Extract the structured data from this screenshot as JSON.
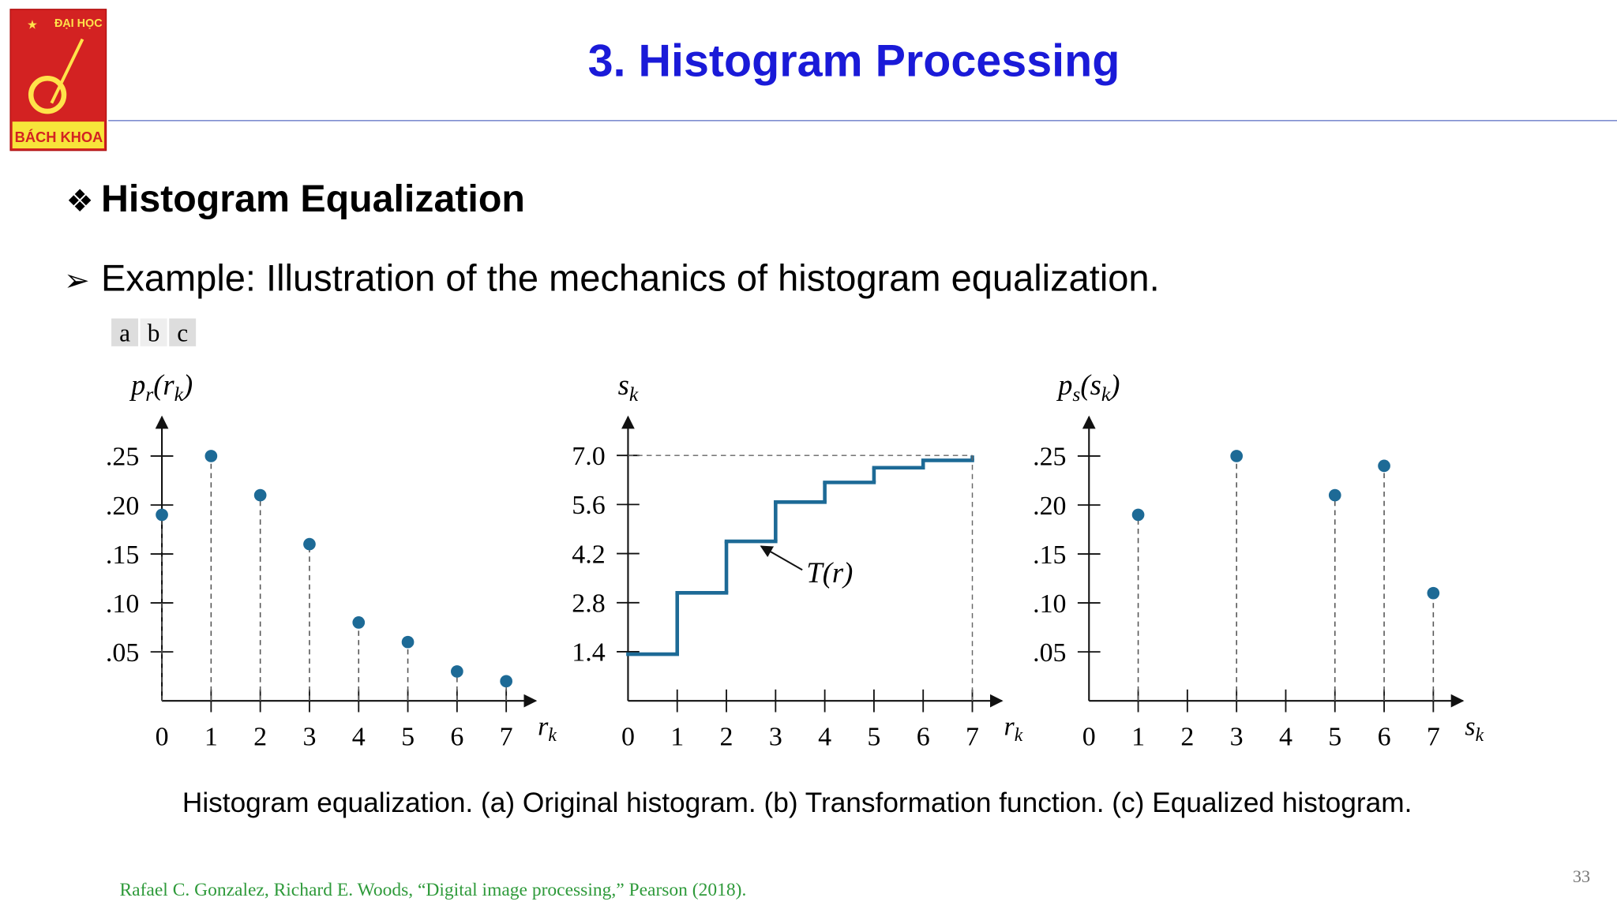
{
  "logo": {
    "top": "ĐẠI HỌC",
    "bottom": "BÁCH KHOA"
  },
  "header": {
    "title": "3. Histogram Processing"
  },
  "heading": {
    "marker": "❖",
    "text": "Histogram Equalization"
  },
  "bullet": {
    "marker": "➢",
    "text": "Example: Illustration of the mechanics of histogram equalization."
  },
  "panel_labels": [
    "a",
    "b",
    "c"
  ],
  "chart_data": [
    {
      "type": "stem",
      "ylabel": [
        {
          "text": "p"
        },
        {
          "text": "r",
          "sub": true
        },
        {
          "text": "("
        },
        {
          "text": "r"
        },
        {
          "text": "k",
          "sub": true
        },
        {
          "text": ")"
        }
      ],
      "xlabel": [
        {
          "text": "r"
        },
        {
          "text": "k",
          "sub": true
        }
      ],
      "x": [
        0,
        1,
        2,
        3,
        4,
        5,
        6,
        7
      ],
      "values": [
        0.19,
        0.25,
        0.21,
        0.16,
        0.08,
        0.06,
        0.03,
        0.02
      ],
      "color": "#1d6a96",
      "xlim": [
        0,
        7.6
      ],
      "ylim": [
        0,
        0.29
      ],
      "xticks": [
        0,
        1,
        2,
        3,
        4,
        5,
        6,
        7
      ],
      "yticks": [
        {
          "value": 0.05,
          "label": ".05"
        },
        {
          "value": 0.1,
          "label": ".10"
        },
        {
          "value": 0.15,
          "label": ".15"
        },
        {
          "value": 0.2,
          "label": ".20"
        },
        {
          "value": 0.25,
          "label": ".25"
        }
      ]
    },
    {
      "type": "step",
      "ylabel": [
        {
          "text": "s"
        },
        {
          "text": "k",
          "sub": true
        }
      ],
      "xlabel": [
        {
          "text": "r"
        },
        {
          "text": "k",
          "sub": true
        }
      ],
      "x": [
        0,
        1,
        2,
        3,
        4,
        5,
        6,
        7
      ],
      "values": [
        1.33,
        3.08,
        4.55,
        5.67,
        6.23,
        6.65,
        6.86,
        7.0
      ],
      "color": "#1d6a96",
      "annotation": "T(r)",
      "xlim": [
        0,
        7.6
      ],
      "ylim": [
        0,
        8.1
      ],
      "xticks": [
        0,
        1,
        2,
        3,
        4,
        5,
        6,
        7
      ],
      "yticks": [
        1.4,
        2.8,
        4.2,
        5.6,
        {
          "value": 7,
          "label": "7.0"
        }
      ]
    },
    {
      "type": "stem",
      "ylabel": [
        {
          "text": "p"
        },
        {
          "text": "s",
          "sub": true
        },
        {
          "text": "("
        },
        {
          "text": "s"
        },
        {
          "text": "k",
          "sub": true
        },
        {
          "text": ")"
        }
      ],
      "xlabel": [
        {
          "text": "s"
        },
        {
          "text": "k",
          "sub": true
        }
      ],
      "x": [
        1,
        3,
        5,
        6,
        7
      ],
      "values": [
        0.19,
        0.25,
        0.21,
        0.24,
        0.11
      ],
      "color": "#1d6a96",
      "xlim": [
        0,
        7.6
      ],
      "ylim": [
        0,
        0.29
      ],
      "xticks": [
        0,
        1,
        2,
        3,
        4,
        5,
        6,
        7
      ],
      "yticks": [
        {
          "value": 0.05,
          "label": ".05"
        },
        {
          "value": 0.1,
          "label": ".10"
        },
        {
          "value": 0.15,
          "label": ".15"
        },
        {
          "value": 0.2,
          "label": ".20"
        },
        {
          "value": 0.25,
          "label": ".25"
        }
      ]
    }
  ],
  "caption": "Histogram equalization. (a) Original histogram. (b) Transformation function. (c) Equalized histogram.",
  "citation": "Rafael C. Gonzalez, Richard E. Woods, “Digital image processing,” Pearson (2018).",
  "page_number": "33"
}
